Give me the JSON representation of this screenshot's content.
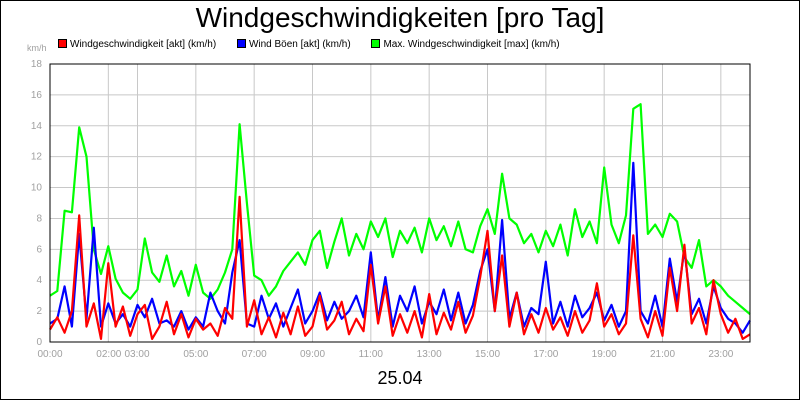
{
  "chart_data": {
    "type": "line",
    "title": "Windgeschwindigkeiten [pro Tag]",
    "unit_label": "km/h",
    "xlabel": "25.04",
    "ylim": [
      0,
      18
    ],
    "y_ticks": [
      0,
      2,
      4,
      6,
      8,
      10,
      12,
      14,
      16,
      18
    ],
    "x_tick_labels": [
      "00:00",
      "02:00",
      "03:00",
      "05:00",
      "07:00",
      "09:00",
      "11:00",
      "13:00",
      "15:00",
      "17:00",
      "19:00",
      "21:00",
      "23:00"
    ],
    "x_tick_hours": [
      0,
      2,
      3,
      5,
      7,
      9,
      11,
      13,
      15,
      17,
      19,
      21,
      23
    ],
    "x_range_hours": [
      0,
      24
    ],
    "grid": true,
    "legend_position": "top",
    "series": [
      {
        "name": "Windgeschwindigkeit [akt] (km/h)",
        "color": "#ff0000",
        "x": [
          0,
          0.25,
          0.5,
          0.75,
          1,
          1.25,
          1.5,
          1.75,
          2,
          2.25,
          2.5,
          2.75,
          3,
          3.25,
          3.5,
          3.75,
          4,
          4.25,
          4.5,
          4.75,
          5,
          5.25,
          5.5,
          5.75,
          6,
          6.25,
          6.5,
          6.75,
          7,
          7.25,
          7.5,
          7.75,
          8,
          8.25,
          8.5,
          8.75,
          9,
          9.25,
          9.5,
          9.75,
          10,
          10.25,
          10.5,
          10.75,
          11,
          11.25,
          11.5,
          11.75,
          12,
          12.25,
          12.5,
          12.75,
          13,
          13.25,
          13.5,
          13.75,
          14,
          14.25,
          14.5,
          14.75,
          15,
          15.25,
          15.5,
          15.75,
          16,
          16.25,
          16.5,
          16.75,
          17,
          17.25,
          17.5,
          17.75,
          18,
          18.25,
          18.5,
          18.75,
          19,
          19.25,
          19.5,
          19.75,
          20,
          20.25,
          20.5,
          20.75,
          21,
          21.25,
          21.5,
          21.75,
          22,
          22.25,
          22.5,
          22.75,
          23,
          23.25,
          23.5,
          23.75,
          24
        ],
        "values": [
          0.8,
          1.6,
          0.6,
          2.0,
          8.2,
          1.0,
          2.5,
          0.2,
          5.1,
          1.0,
          2.3,
          0.4,
          1.8,
          2.4,
          0.2,
          1.0,
          2.6,
          0.5,
          1.8,
          0.3,
          1.5,
          0.8,
          1.2,
          0.4,
          2.2,
          1.5,
          9.4,
          1.0,
          2.7,
          0.5,
          1.6,
          0.3,
          1.9,
          0.5,
          2.3,
          0.4,
          1.0,
          3.0,
          0.8,
          1.4,
          2.6,
          0.5,
          1.5,
          0.7,
          5.0,
          1.2,
          3.6,
          0.4,
          1.8,
          0.6,
          2.0,
          0.3,
          3.1,
          0.5,
          1.9,
          0.8,
          2.6,
          0.6,
          1.7,
          4.2,
          7.2,
          2.0,
          5.6,
          1.0,
          3.2,
          0.5,
          1.8,
          0.6,
          2.2,
          0.8,
          1.6,
          0.4,
          2.0,
          0.6,
          1.4,
          3.8,
          1.0,
          1.8,
          0.5,
          1.2,
          6.9,
          1.5,
          0.3,
          2.0,
          0.4,
          4.8,
          2.0,
          6.3,
          1.2,
          2.2,
          0.5,
          4.0,
          1.8,
          0.6,
          1.5,
          0.2,
          0.5
        ]
      },
      {
        "name": "Wind Böen [akt] (km/h)",
        "color": "#0000ff",
        "x": [
          0,
          0.25,
          0.5,
          0.75,
          1,
          1.25,
          1.5,
          1.75,
          2,
          2.25,
          2.5,
          2.75,
          3,
          3.25,
          3.5,
          3.75,
          4,
          4.25,
          4.5,
          4.75,
          5,
          5.25,
          5.5,
          5.75,
          6,
          6.25,
          6.5,
          6.75,
          7,
          7.25,
          7.5,
          7.75,
          8,
          8.25,
          8.5,
          8.75,
          9,
          9.25,
          9.5,
          9.75,
          10,
          10.25,
          10.5,
          10.75,
          11,
          11.25,
          11.5,
          11.75,
          12,
          12.25,
          12.5,
          12.75,
          13,
          13.25,
          13.5,
          13.75,
          14,
          14.25,
          14.5,
          14.75,
          15,
          15.25,
          15.5,
          15.75,
          16,
          16.25,
          16.5,
          16.75,
          17,
          17.25,
          17.5,
          17.75,
          18,
          18.25,
          18.5,
          18.75,
          19,
          19.25,
          19.5,
          19.75,
          20,
          20.25,
          20.5,
          20.75,
          21,
          21.25,
          21.5,
          21.75,
          22,
          22.25,
          22.5,
          22.75,
          23,
          23.25,
          23.5,
          23.75,
          24
        ],
        "values": [
          1.2,
          1.5,
          3.6,
          1.0,
          7.0,
          1.5,
          7.4,
          1.0,
          2.5,
          1.2,
          1.8,
          1.0,
          2.4,
          1.6,
          2.8,
          1.2,
          1.4,
          1.0,
          2.0,
          0.8,
          1.6,
          1.0,
          3.2,
          2.0,
          1.2,
          4.5,
          6.6,
          1.2,
          1.0,
          3.0,
          1.5,
          2.5,
          1.0,
          2.2,
          3.4,
          1.2,
          2.0,
          3.2,
          1.4,
          2.6,
          1.5,
          2.0,
          3.0,
          1.6,
          5.8,
          1.4,
          4.2,
          1.0,
          3.0,
          2.0,
          3.6,
          1.2,
          2.6,
          1.8,
          3.4,
          1.4,
          3.2,
          1.2,
          2.4,
          4.6,
          6.0,
          2.0,
          7.9,
          1.5,
          3.2,
          1.0,
          2.2,
          1.8,
          5.2,
          1.2,
          2.6,
          1.0,
          3.0,
          1.6,
          2.2,
          3.2,
          1.4,
          2.4,
          1.0,
          2.0,
          11.6,
          2.0,
          1.2,
          3.0,
          1.0,
          5.4,
          2.6,
          6.0,
          1.8,
          2.8,
          1.2,
          3.6,
          2.2,
          1.5,
          1.2,
          0.6,
          1.4
        ]
      },
      {
        "name": "Max. Windgeschwindigkeit [max] (km/h)",
        "color": "#00ff00",
        "x": [
          0,
          0.25,
          0.5,
          0.75,
          1,
          1.25,
          1.5,
          1.75,
          2,
          2.25,
          2.5,
          2.75,
          3,
          3.25,
          3.5,
          3.75,
          4,
          4.25,
          4.5,
          4.75,
          5,
          5.25,
          5.5,
          5.75,
          6,
          6.25,
          6.5,
          6.75,
          7,
          7.25,
          7.5,
          7.75,
          8,
          8.25,
          8.5,
          8.75,
          9,
          9.25,
          9.5,
          9.75,
          10,
          10.25,
          10.5,
          10.75,
          11,
          11.25,
          11.5,
          11.75,
          12,
          12.25,
          12.5,
          12.75,
          13,
          13.25,
          13.5,
          13.75,
          14,
          14.25,
          14.5,
          14.75,
          15,
          15.25,
          15.5,
          15.75,
          16,
          16.25,
          16.5,
          16.75,
          17,
          17.25,
          17.5,
          17.75,
          18,
          18.25,
          18.5,
          18.75,
          19,
          19.25,
          19.5,
          19.75,
          20,
          20.25,
          20.5,
          20.75,
          21,
          21.25,
          21.5,
          21.75,
          22,
          22.25,
          22.5,
          22.75,
          23,
          23.25,
          23.5,
          23.75,
          24
        ],
        "values": [
          3.0,
          3.3,
          8.5,
          8.4,
          13.9,
          12.0,
          6.0,
          4.4,
          6.2,
          4.1,
          3.2,
          2.8,
          3.4,
          6.7,
          4.5,
          3.9,
          5.6,
          3.6,
          4.6,
          3.0,
          5.0,
          3.2,
          2.8,
          3.4,
          4.5,
          6.0,
          14.1,
          9.0,
          4.3,
          4.0,
          3.0,
          3.6,
          4.6,
          5.2,
          5.8,
          5.0,
          6.6,
          7.2,
          4.8,
          6.5,
          8.0,
          5.6,
          7.0,
          6.0,
          7.8,
          6.8,
          8.0,
          5.5,
          7.2,
          6.4,
          7.4,
          5.8,
          8.0,
          6.6,
          7.5,
          6.2,
          7.8,
          6.0,
          5.8,
          7.5,
          8.6,
          7.0,
          10.9,
          8.0,
          7.6,
          6.4,
          7.0,
          5.8,
          7.2,
          6.2,
          7.6,
          5.6,
          8.6,
          6.8,
          7.8,
          6.4,
          11.3,
          7.6,
          6.4,
          8.2,
          15.1,
          15.4,
          7.0,
          7.6,
          6.8,
          8.3,
          7.8,
          5.5,
          4.8,
          6.6,
          3.6,
          4.0,
          3.6,
          3.0,
          2.6,
          2.2,
          1.8
        ]
      }
    ]
  }
}
